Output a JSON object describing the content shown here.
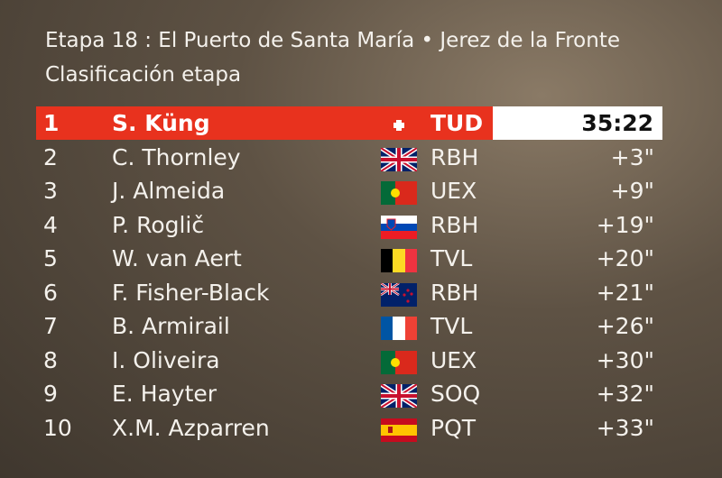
{
  "header": {
    "title": "Etapa 18 : El Puerto de Santa María • Jerez de la Fronte",
    "subtitle": "Clasificación etapa"
  },
  "table": {
    "rows": [
      [
        1,
        "S. Küng",
        "TUD",
        "35:22"
      ],
      [
        2,
        "C. Thornley",
        "RBH",
        "+3\""
      ],
      [
        3,
        "J. Almeida",
        "UEX",
        "+9\""
      ],
      [
        4,
        "P. Roglič",
        "RBH",
        "+19\""
      ],
      [
        5,
        "W. van Aert",
        "TVL",
        "+20\""
      ],
      [
        6,
        "F. Fisher-Black",
        "RBH",
        "+21\""
      ],
      [
        7,
        "B. Armirail",
        "TVL",
        "+26\""
      ],
      [
        8,
        "I. Oliveira",
        "UEX",
        "+30\""
      ],
      [
        9,
        "E. Hayter",
        "SOQ",
        "+32\""
      ],
      [
        10,
        "X.M. Azparren",
        "PQT",
        "+33\""
      ]
    ]
  }
}
